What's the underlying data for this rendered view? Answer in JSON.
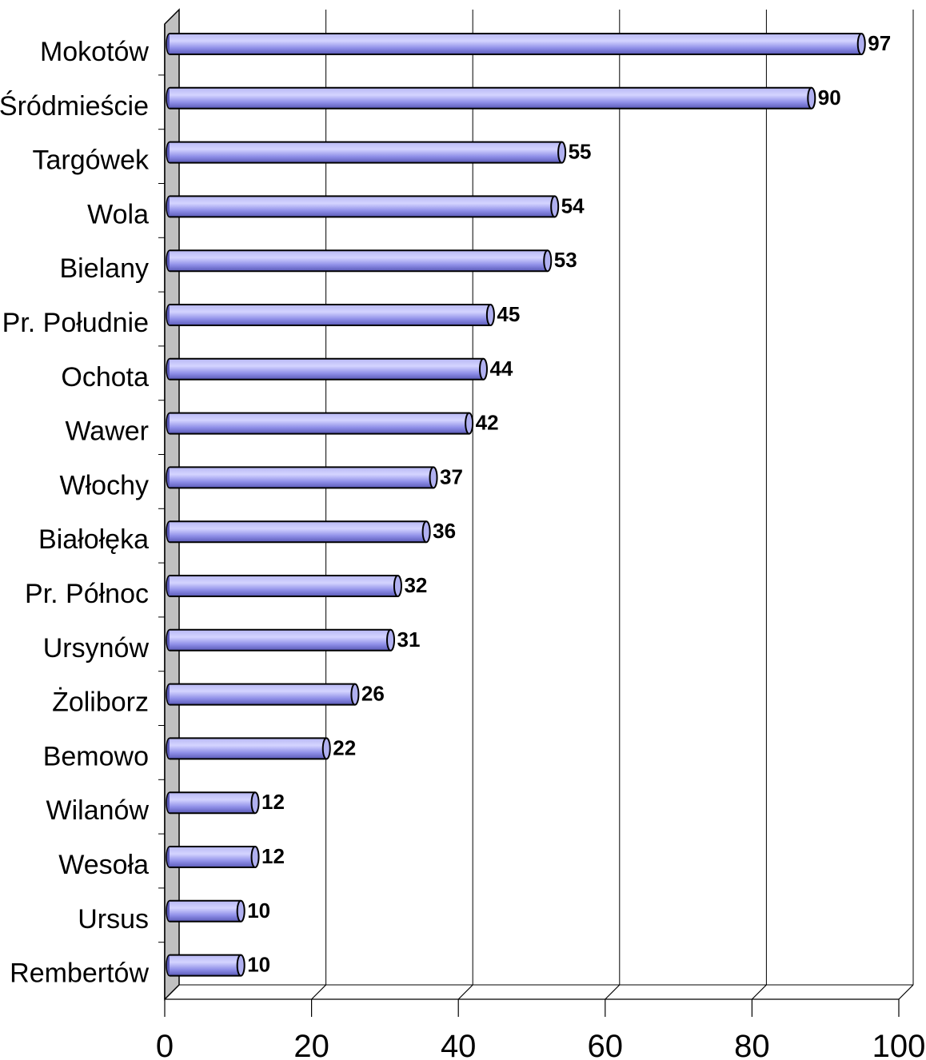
{
  "chart_data": {
    "type": "bar",
    "orientation": "horizontal",
    "categories": [
      "Mokotów",
      "Śródmieście",
      "Targówek",
      "Wola",
      "Bielany",
      "Pr. Południe",
      "Ochota",
      "Wawer",
      "Włochy",
      "Białołęka",
      "Pr. Północ",
      "Ursynów",
      "Żoliborz",
      "Bemowo",
      "Wilanów",
      "Wesoła",
      "Ursus",
      "Rembertów"
    ],
    "values": [
      97,
      90,
      55,
      54,
      53,
      45,
      44,
      42,
      37,
      36,
      32,
      31,
      26,
      22,
      12,
      12,
      10,
      10
    ],
    "value_labels": [
      "97",
      "90",
      "55",
      "54",
      "53",
      "45",
      "44",
      "42",
      "37",
      "36",
      "32",
      "31",
      "26",
      "22",
      "12",
      "12",
      "10",
      "10"
    ],
    "xlim": [
      0,
      100
    ],
    "x_ticks": [
      0,
      20,
      40,
      60,
      80,
      100
    ],
    "x_tick_labels": [
      "0",
      "20",
      "40",
      "60",
      "80",
      "100"
    ],
    "grid": true,
    "legend": "none",
    "colors": {
      "bar_fill": "#8f8fe8",
      "bar_highlight": "#d4d4ff",
      "bar_shade": "#5a5ab8",
      "wall": "#c0c0c0",
      "grid": "#000000"
    }
  }
}
